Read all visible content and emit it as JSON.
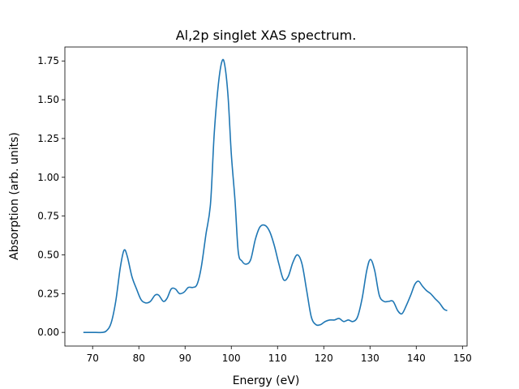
{
  "chart_data": {
    "type": "line",
    "title": "Al,2p singlet XAS spectrum.",
    "xlabel": "Energy (eV)",
    "ylabel": "Absorption (arb. units)",
    "xlim": [
      64,
      151
    ],
    "ylim": [
      -0.088,
      1.84
    ],
    "xticks": [
      70,
      80,
      90,
      100,
      110,
      120,
      130,
      140,
      150
    ],
    "yticks": [
      0.0,
      0.25,
      0.5,
      0.75,
      1.0,
      1.25,
      1.5,
      1.75
    ],
    "ytick_labels": [
      "0.00",
      "0.25",
      "0.50",
      "0.75",
      "1.00",
      "1.25",
      "1.50",
      "1.75"
    ],
    "grid": false,
    "line_color": "#1f77b4",
    "series": [
      {
        "x": [
          68,
          70,
          72,
          73,
          74,
          75,
          76,
          76.8,
          77.5,
          78.5,
          79.5,
          80.5,
          81.5,
          82.5,
          83.5,
          84.3,
          85.3,
          86.1,
          87,
          87.9,
          88.8,
          89.8,
          90.7,
          91.7,
          92.6,
          93.5,
          94.5,
          95.5,
          96.3,
          97.2,
          98,
          98.6,
          99.3,
          100,
          100.8,
          101.5,
          102.3,
          103.2,
          104.2,
          105.2,
          106.2,
          107.3,
          108.3,
          109.3,
          110.3,
          111.3,
          112.3,
          113.3,
          114.3,
          115.3,
          116.3,
          117.3,
          118.3,
          119.3,
          120.3,
          121.3,
          122.3,
          123.3,
          124.3,
          125.3,
          126.3,
          127.3,
          128.3,
          129.3,
          130.1,
          131,
          132,
          133,
          134,
          135,
          136,
          136.9,
          137.8,
          138.8,
          139.7,
          140.5,
          141.3,
          142.2,
          143.1,
          144,
          145,
          146,
          146.7
        ],
        "y": [
          0.0,
          0.0,
          0.0,
          0.01,
          0.06,
          0.2,
          0.42,
          0.53,
          0.49,
          0.36,
          0.28,
          0.21,
          0.19,
          0.2,
          0.24,
          0.24,
          0.2,
          0.22,
          0.28,
          0.28,
          0.25,
          0.26,
          0.29,
          0.29,
          0.31,
          0.42,
          0.63,
          0.83,
          1.28,
          1.6,
          1.75,
          1.72,
          1.52,
          1.15,
          0.85,
          0.52,
          0.46,
          0.44,
          0.47,
          0.6,
          0.68,
          0.69,
          0.65,
          0.56,
          0.44,
          0.34,
          0.36,
          0.45,
          0.5,
          0.44,
          0.27,
          0.1,
          0.05,
          0.05,
          0.07,
          0.08,
          0.08,
          0.09,
          0.07,
          0.08,
          0.07,
          0.1,
          0.22,
          0.4,
          0.47,
          0.4,
          0.24,
          0.2,
          0.2,
          0.2,
          0.14,
          0.12,
          0.17,
          0.24,
          0.31,
          0.33,
          0.3,
          0.27,
          0.25,
          0.22,
          0.19,
          0.15,
          0.14
        ]
      }
    ]
  }
}
